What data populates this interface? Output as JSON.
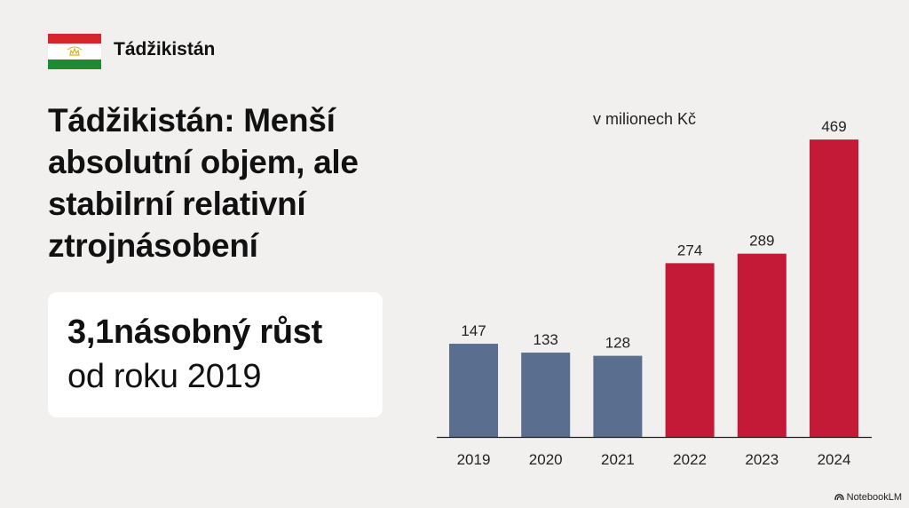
{
  "header": {
    "flag_colors": {
      "top": "#d6262b",
      "middle": "#ffffff",
      "bottom": "#1f8a34",
      "emblem": "#e0b12a"
    },
    "country_label": "Tádžikistán"
  },
  "headline": {
    "lines": [
      "Tádžikistán: Menší",
      "absolutní objem, ale",
      "stabilrní relativní",
      "ztrojnásobení"
    ]
  },
  "highlight": {
    "line1": "3,1násobný růst",
    "line2": "od roku 2019"
  },
  "chart_data": {
    "type": "bar",
    "unit_label": "v milionech Kč",
    "categories": [
      "2019",
      "2020",
      "2021",
      "2022",
      "2023",
      "2024"
    ],
    "values": [
      147,
      133,
      128,
      274,
      289,
      469
    ],
    "data_labels": [
      "147",
      "133",
      "128",
      "274",
      "289",
      "469"
    ],
    "colors": [
      "#5a6f90",
      "#5a6f90",
      "#5a6f90",
      "#c41a38",
      "#c41a38",
      "#c41a38"
    ],
    "ylim": [
      0,
      500
    ],
    "grid": false,
    "title": "",
    "xlabel": "",
    "ylabel": ""
  },
  "branding": {
    "label": "NotebookLM"
  }
}
